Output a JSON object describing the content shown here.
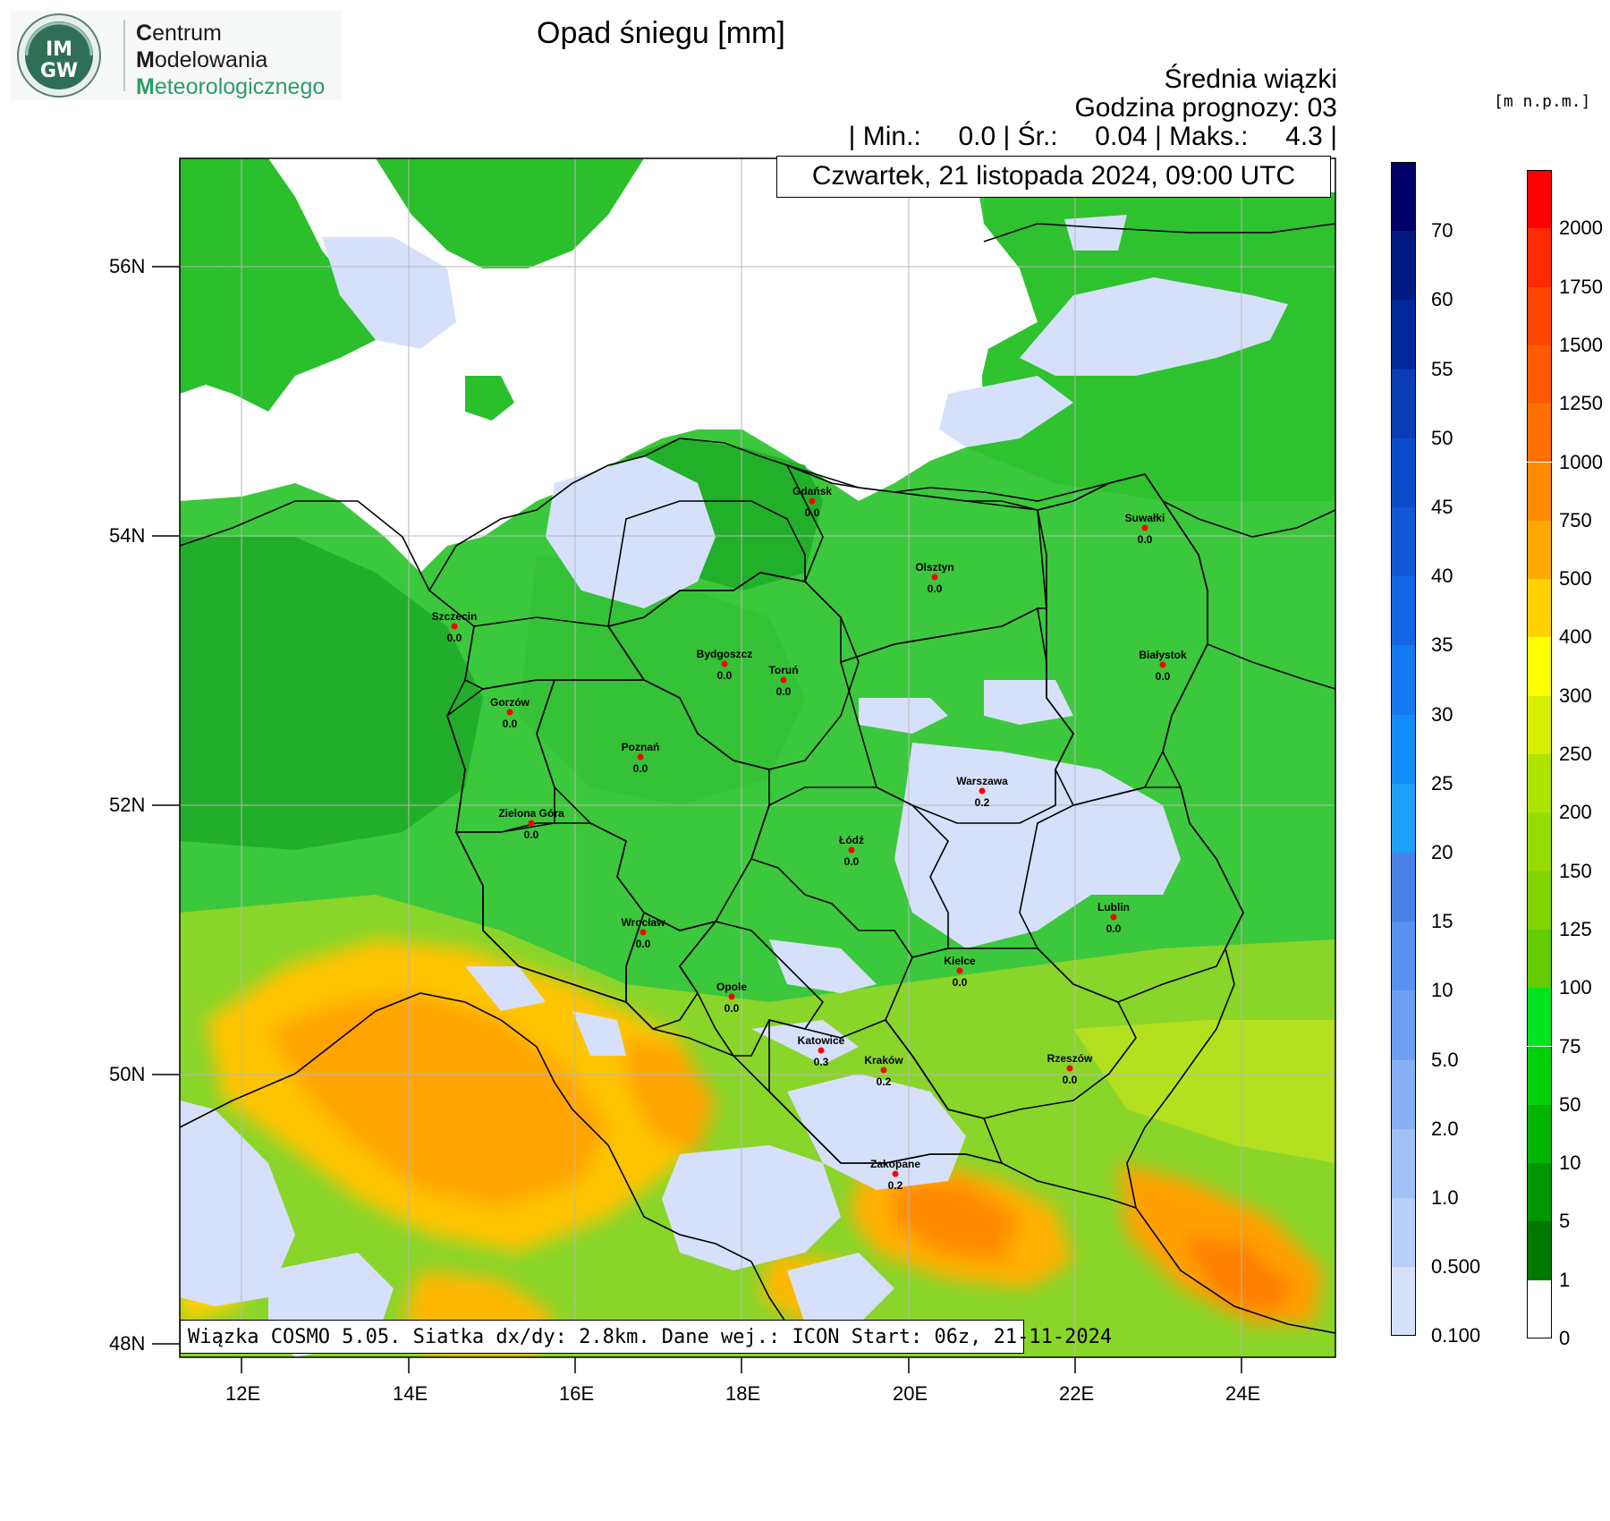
{
  "logo": {
    "emblem_text_top": "IM",
    "emblem_text_bottom": "GW",
    "org_line1_initial": "C",
    "org_line1_rest": "entrum",
    "org_line2_initial": "M",
    "org_line2_rest": "odelowania",
    "org_line3_initial": "M",
    "org_line3_rest": "eteorologicznego"
  },
  "header": {
    "title": "Opad śniegu [mm]",
    "subtitle": "Średnia wiązki",
    "forecast_hour": "Godzina prognozy: 03",
    "stats": "| Min.:     0.0 | Śr.:     0.04 | Maks.:     4.3 |",
    "units_label": "[m n.p.m.]"
  },
  "date_label": "Czwartek, 21 listopada 2024, 09:00 UTC",
  "footer_label": "Wiązka COSMO 5.05. Siatka dx/dy: 2.8km. Dane wej.: ICON Start: 06z, 21-11-2024",
  "axes": {
    "lat_labels": [
      "56N",
      "54N",
      "52N",
      "50N",
      "48N"
    ],
    "lon_labels": [
      "12E",
      "14E",
      "16E",
      "18E",
      "20E",
      "22E",
      "24E"
    ]
  },
  "snow_colorbar": {
    "labels": [
      "70",
      "60",
      "55",
      "50",
      "45",
      "40",
      "35",
      "30",
      "25",
      "20",
      "15",
      "10",
      "5.0",
      "2.0",
      "1.0",
      "0.500",
      "0.100"
    ],
    "colors": [
      "#000066",
      "#001a80",
      "#00289a",
      "#0a3cb4",
      "#0a4cc8",
      "#1058d8",
      "#1466e6",
      "#1478f0",
      "#148cf5",
      "#1ea0fa",
      "#4a82e8",
      "#5a92ee",
      "#6e9ff2",
      "#88b0f4",
      "#a0c0f6",
      "#b8cff8",
      "#d6e0fa"
    ]
  },
  "elev_colorbar": {
    "labels": [
      "2000",
      "1750",
      "1500",
      "1250",
      "1000",
      "750",
      "500",
      "400",
      "300",
      "250",
      "200",
      "150",
      "125",
      "100",
      "75",
      "50",
      "10",
      "5",
      "1",
      "0"
    ],
    "colors": [
      "#ff0000",
      "#ff2a00",
      "#ff4600",
      "#ff5a00",
      "#ff7000",
      "#ff8c00",
      "#ffa800",
      "#ffd200",
      "#ffff00",
      "#d8f000",
      "#b0e400",
      "#96dc00",
      "#80d400",
      "#64cc00",
      "#00e61e",
      "#00d00a",
      "#00b400",
      "#009600",
      "#007800",
      "#ffffff"
    ]
  },
  "cities": [
    {
      "name": "Gdańsk",
      "value": "0.0"
    },
    {
      "name": "Suwałki",
      "value": "0.0"
    },
    {
      "name": "Olsztyn",
      "value": "0.0"
    },
    {
      "name": "Szczecin",
      "value": "0.0"
    },
    {
      "name": "Bydgoszcz",
      "value": "0.0"
    },
    {
      "name": "Toruń",
      "value": "0.0"
    },
    {
      "name": "Białystok",
      "value": "0.0"
    },
    {
      "name": "Gorzów",
      "value": "0.0"
    },
    {
      "name": "Poznań",
      "value": "0.0"
    },
    {
      "name": "Warszawa",
      "value": "0.2"
    },
    {
      "name": "Zielona Góra",
      "value": "0.0"
    },
    {
      "name": "Łódź",
      "value": "0.0"
    },
    {
      "name": "Lublin",
      "value": "0.0"
    },
    {
      "name": "Wrocław",
      "value": "0.0"
    },
    {
      "name": "Kielce",
      "value": "0.0"
    },
    {
      "name": "Opole",
      "value": "0.0"
    },
    {
      "name": "Katowice",
      "value": "0.3"
    },
    {
      "name": "Kraków",
      "value": "0.2"
    },
    {
      "name": "Rzeszów",
      "value": "0.0"
    },
    {
      "name": "Zakopane",
      "value": "0.2"
    }
  ],
  "colors": {
    "sea": "#ffffff",
    "lowland": "#2ec82e",
    "snow_light": "#d6e0fa",
    "mountain": "#ffa800",
    "city_dot": "#ff0000"
  }
}
